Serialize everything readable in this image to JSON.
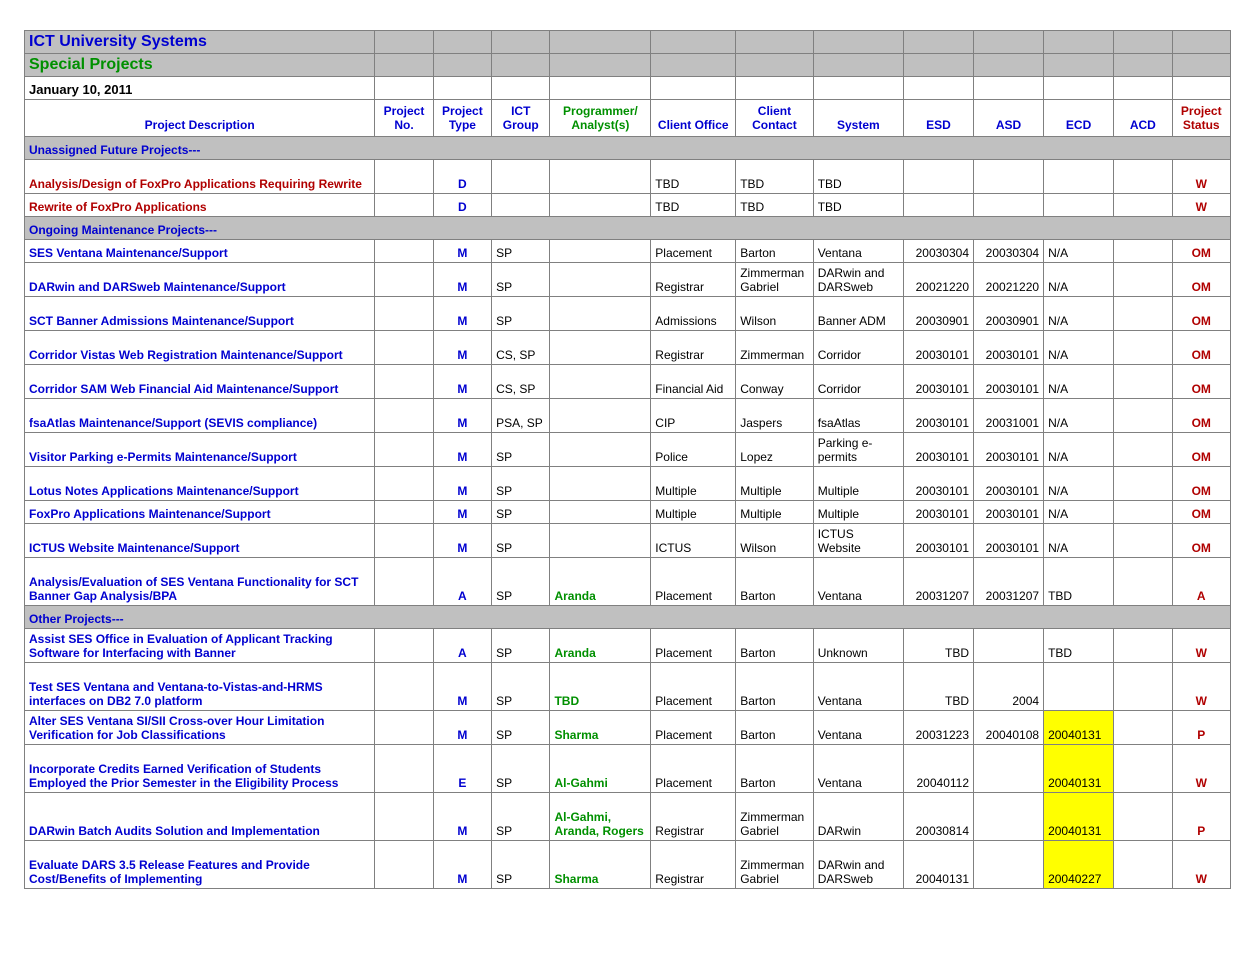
{
  "titles": {
    "line1": "ICT University Systems",
    "line2": "Special Projects"
  },
  "date": "January 10, 2011",
  "headers": {
    "desc": "Project Description",
    "no": "Project No.",
    "ptype": "Project Type",
    "group": "ICT Group",
    "analyst": "Programmer/ Analyst(s)",
    "office": "Client Office",
    "contact": "Client Contact",
    "system": "System",
    "esd": "ESD",
    "asd": "ASD",
    "ecd": "ECD",
    "acd": "ACD",
    "status": "Project Status"
  },
  "sections": {
    "unassigned": "Unassigned Future Projects---",
    "ongoing": "Ongoing Maintenance Projects---",
    "other": "Other Projects---"
  },
  "rows": [
    {
      "desc": "Analysis/Design of FoxPro Applications Requiring Rewrite",
      "descStyle": "red",
      "tall": true,
      "ptype": "D",
      "office": "TBD",
      "contact": "TBD",
      "system": "TBD",
      "status": "W"
    },
    {
      "desc": "Rewrite of FoxPro Applications",
      "descStyle": "red",
      "ptype": "D",
      "office": "TBD",
      "contact": "TBD",
      "system": "TBD",
      "status": "W"
    },
    {
      "desc": "SES Ventana Maintenance/Support",
      "ptype": "M",
      "group": "SP",
      "office": "Placement",
      "contact": "Barton",
      "system": "Ventana",
      "esd": "20030304",
      "asd": "20030304",
      "ecd": "N/A",
      "status": "OM"
    },
    {
      "desc": "DARwin and DARSweb Maintenance/Support",
      "ptype": "M",
      "group": "SP",
      "tall": true,
      "office": "Registrar",
      "contact": "Zimmerman Gabriel",
      "system": "DARwin and DARSweb",
      "esd": "20021220",
      "asd": "20021220",
      "ecd": "N/A",
      "status": "OM"
    },
    {
      "desc": "SCT Banner Admissions Maintenance/Support",
      "ptype": "M",
      "group": "SP",
      "tall": true,
      "office": "Admissions",
      "contact": "Wilson",
      "system": "Banner ADM",
      "esd": "20030901",
      "asd": "20030901",
      "ecd": "N/A",
      "status": "OM"
    },
    {
      "desc": "Corridor Vistas Web Registration Maintenance/Support",
      "ptype": "M",
      "group": "CS, SP",
      "tall": true,
      "office": "Registrar",
      "contact": "Zimmerman",
      "system": "Corridor",
      "esd": "20030101",
      "asd": "20030101",
      "ecd": "N/A",
      "status": "OM"
    },
    {
      "desc": "Corridor SAM Web Financial Aid Maintenance/Support",
      "ptype": "M",
      "group": "CS, SP",
      "tall": true,
      "office": "Financial Aid",
      "contact": "Conway",
      "system": "Corridor",
      "esd": "20030101",
      "asd": "20030101",
      "ecd": "N/A",
      "status": "OM"
    },
    {
      "desc": "fsaAtlas Maintenance/Support (SEVIS compliance)",
      "ptype": "M",
      "group": "PSA, SP",
      "tall": true,
      "office": "CIP",
      "contact": "Jaspers",
      "system": "fsaAtlas",
      "esd": "20030101",
      "asd": "20031001",
      "ecd": "N/A",
      "status": "OM"
    },
    {
      "desc": "Visitor Parking e-Permits Maintenance/Support",
      "ptype": "M",
      "group": "SP",
      "tall": true,
      "office": "Police",
      "contact": "Lopez",
      "system": "Parking e-permits",
      "esd": "20030101",
      "asd": "20030101",
      "ecd": "N/A",
      "status": "OM"
    },
    {
      "desc": "Lotus Notes Applications Maintenance/Support",
      "ptype": "M",
      "group": "SP",
      "tall": true,
      "office": "Multiple",
      "contact": "Multiple",
      "system": "Multiple",
      "esd": "20030101",
      "asd": "20030101",
      "ecd": "N/A",
      "status": "OM"
    },
    {
      "desc": "FoxPro Applications Maintenance/Support",
      "ptype": "M",
      "group": "SP",
      "office": "Multiple",
      "contact": "Multiple",
      "system": "Multiple",
      "esd": "20030101",
      "asd": "20030101",
      "ecd": "N/A",
      "status": "OM"
    },
    {
      "desc": "ICTUS Website Maintenance/Support",
      "ptype": "M",
      "group": "SP",
      "tall": true,
      "office": "ICTUS",
      "contact": "Wilson",
      "system": "ICTUS Website",
      "esd": "20030101",
      "asd": "20030101",
      "ecd": "N/A",
      "status": "OM"
    },
    {
      "desc": "Analysis/Evaluation of SES Ventana Functionality for SCT Banner Gap Analysis/BPA",
      "ptype": "A",
      "group": "SP",
      "analyst": "Aranda",
      "tall3": true,
      "office": "Placement",
      "contact": "Barton",
      "system": "Ventana",
      "esd": "20031207",
      "asd": "20031207",
      "ecd": "TBD",
      "status": "A"
    },
    {
      "desc": "Assist SES Office in Evaluation of Applicant Tracking Software for Interfacing with Banner",
      "ptype": "A",
      "group": "SP",
      "analyst": "Aranda",
      "tall": true,
      "office": "Placement",
      "contact": "Barton",
      "system": "Unknown",
      "esd": "TBD",
      "ecd": "TBD",
      "status": "W"
    },
    {
      "desc": "Test SES Ventana and Ventana-to-Vistas-and-HRMS interfaces on DB2 7.0 platform",
      "ptype": "M",
      "group": "SP",
      "analyst": "TBD",
      "tall3": true,
      "office": "Placement",
      "contact": "Barton",
      "system": "Ventana",
      "esd": "TBD",
      "asd": "2004",
      "status": "W"
    },
    {
      "desc": "Alter SES Ventana SI/SII Cross-over Hour Limitation Verification for Job Classifications",
      "ptype": "M",
      "group": "SP",
      "analyst": "Sharma",
      "tall": true,
      "office": "Placement",
      "contact": "Barton",
      "system": "Ventana",
      "esd": "20031223",
      "asd": "20040108",
      "ecd": "20040131",
      "ecdHL": true,
      "status": "P"
    },
    {
      "desc": "Incorporate Credits Earned Verification of Students Employed the Prior Semester in the Eligibility Process",
      "ptype": "E",
      "group": "SP",
      "analyst": "Al-Gahmi",
      "tall3": true,
      "office": "Placement",
      "contact": "Barton",
      "system": "Ventana",
      "esd": "20040112",
      "ecd": "20040131",
      "ecdHL": true,
      "status": "W"
    },
    {
      "desc": "DARwin Batch Audits Solution and Implementation",
      "ptype": "M",
      "group": "SP",
      "analyst": "Al-Gahmi, Aranda, Rogers",
      "tall3": true,
      "office": "Registrar",
      "contact": "Zimmerman Gabriel",
      "system": "DARwin",
      "esd": "20030814",
      "ecd": "20040131",
      "ecdHL": true,
      "status": "P"
    },
    {
      "desc": "Evaluate DARS 3.5 Release Features and Provide Cost/Benefits of Implementing",
      "ptype": "M",
      "group": "SP",
      "analyst": "Sharma",
      "tall3": true,
      "office": "Registrar",
      "contact": "Zimmerman Gabriel",
      "system": "DARwin and DARSweb",
      "esd": "20040131",
      "ecd": "20040227",
      "ecdHL": true,
      "status": "W"
    }
  ]
}
